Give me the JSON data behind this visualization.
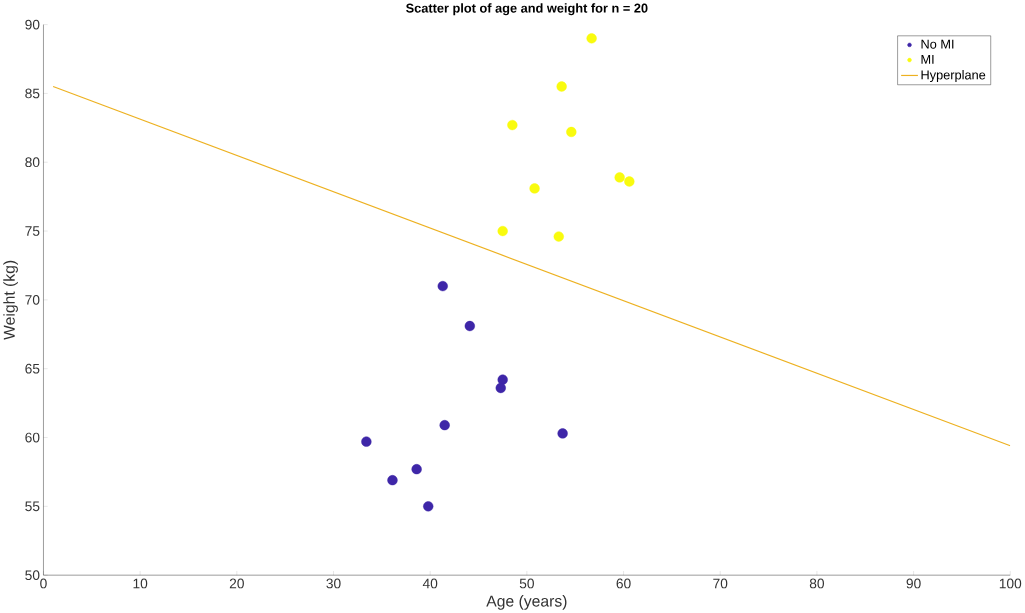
{
  "chart_data": {
    "type": "scatter",
    "title": "Scatter plot of age and weight for n = 20",
    "xlabel": "Age (years)",
    "ylabel": "Weight (kg)",
    "xlim": [
      0,
      100
    ],
    "ylim": [
      50,
      90
    ],
    "xticks": [
      0,
      10,
      20,
      30,
      40,
      50,
      60,
      70,
      80,
      90,
      100
    ],
    "yticks": [
      50,
      55,
      60,
      65,
      70,
      75,
      80,
      85,
      90
    ],
    "legend": "top right",
    "grid": false,
    "series": [
      {
        "name": "No MI",
        "color": "#3e26a8",
        "marker": "circle",
        "x": [
          33.4,
          36.1,
          38.6,
          39.8,
          41.5,
          41.3,
          44.1,
          47.5,
          47.3,
          53.7
        ],
        "values": [
          59.7,
          56.9,
          57.7,
          55.0,
          60.9,
          71.0,
          68.1,
          64.2,
          63.6,
          60.3
        ]
      },
      {
        "name": "MI",
        "color": "#f9fb0e",
        "marker": "circle",
        "x": [
          56.7,
          53.6,
          48.5,
          54.6,
          50.8,
          59.6,
          60.6,
          47.5,
          53.3
        ],
        "values": [
          89.0,
          85.5,
          82.7,
          82.2,
          78.1,
          78.9,
          78.6,
          75.0,
          74.6
        ]
      },
      {
        "name": "Hyperplane",
        "type": "line",
        "marker": "none",
        "color": "#edb120",
        "x": [
          1,
          100
        ],
        "values": [
          85.5,
          59.4
        ]
      }
    ]
  }
}
